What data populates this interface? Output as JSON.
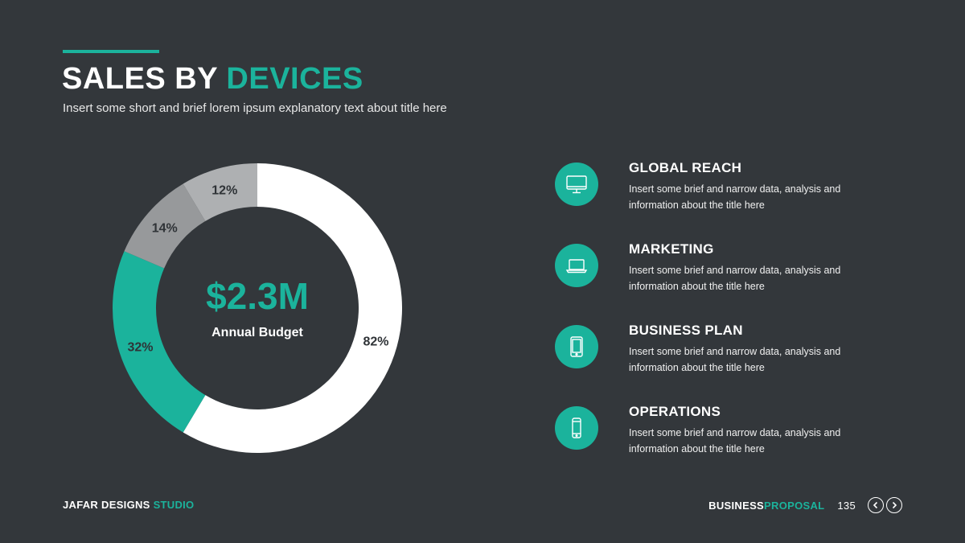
{
  "header": {
    "title_part1": "SALES BY ",
    "title_part2": "DEVICES",
    "subtitle": "Insert some short and brief lorem ipsum explanatory text about title here"
  },
  "chart_data": {
    "type": "pie",
    "variant": "donut",
    "slices": [
      {
        "label": "82%",
        "value": 82,
        "color": "#ffffff"
      },
      {
        "label": "32%",
        "value": 32,
        "color": "#1bb39c"
      },
      {
        "label": "14%",
        "value": 14,
        "color": "#97999b"
      },
      {
        "label": "12%",
        "value": 12,
        "color": "#aeb0b2"
      }
    ],
    "center_value": "$2.3M",
    "center_label": "Annual Budget"
  },
  "features": [
    {
      "title": "GLOBAL REACH",
      "desc": "Insert some brief and narrow data, analysis and information about the title here",
      "icon": "monitor-icon"
    },
    {
      "title": "MARKETING",
      "desc": "Insert some brief and narrow data, analysis and information about the title here",
      "icon": "laptop-icon"
    },
    {
      "title": "BUSINESS PLAN",
      "desc": "Insert some brief and narrow data, analysis and information about the title here",
      "icon": "tablet-icon"
    },
    {
      "title": "OPERATIONS",
      "desc": "Insert some brief and narrow data, analysis and information about the title here",
      "icon": "smartphone-icon"
    }
  ],
  "footer": {
    "brand_part1": "JAFAR DESIGNS ",
    "brand_part2": "STUDIO",
    "doc_part1": "BUSINESS ",
    "doc_part2": "PROPOSAL",
    "page_number": "135"
  },
  "colors": {
    "background": "#33373b",
    "accent": "#1bb39c"
  }
}
